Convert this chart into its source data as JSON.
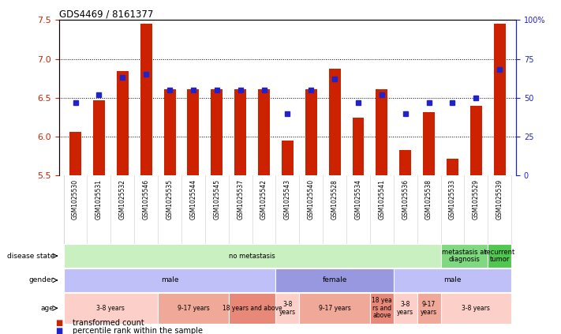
{
  "title": "GDS4469 / 8161377",
  "samples": [
    "GSM1025530",
    "GSM1025531",
    "GSM1025532",
    "GSM1025546",
    "GSM1025535",
    "GSM1025544",
    "GSM1025545",
    "GSM1025537",
    "GSM1025542",
    "GSM1025543",
    "GSM1025540",
    "GSM1025528",
    "GSM1025534",
    "GSM1025541",
    "GSM1025536",
    "GSM1025538",
    "GSM1025533",
    "GSM1025529",
    "GSM1025539"
  ],
  "red_values": [
    6.06,
    6.47,
    6.84,
    7.45,
    6.61,
    6.61,
    6.61,
    6.61,
    6.61,
    5.95,
    6.61,
    6.87,
    6.25,
    6.61,
    5.83,
    6.32,
    5.72,
    6.4,
    7.45
  ],
  "blue_values": [
    47,
    52,
    63,
    65,
    55,
    55,
    55,
    55,
    55,
    40,
    55,
    62,
    47,
    52,
    40,
    47,
    47,
    50,
    68
  ],
  "ylim_red": [
    5.5,
    7.5
  ],
  "ylim_blue": [
    0,
    100
  ],
  "yticks_red": [
    5.5,
    6.0,
    6.5,
    7.0,
    7.5
  ],
  "yticks_blue": [
    0,
    25,
    50,
    75,
    100
  ],
  "ytick_labels_blue": [
    "0",
    "25",
    "50",
    "75",
    "100%"
  ],
  "red_color": "#cc2200",
  "blue_color": "#2222cc",
  "bar_bottom": 5.5,
  "dotted_lines": [
    6.0,
    6.5,
    7.0
  ],
  "disease_state_groups": [
    {
      "label": "no metastasis",
      "start": 0,
      "end": 16,
      "color": "#c8f0c0"
    },
    {
      "label": "metastasis at\ndiagnosis",
      "start": 16,
      "end": 18,
      "color": "#80d880"
    },
    {
      "label": "recurrent\ntumor",
      "start": 18,
      "end": 19,
      "color": "#50c850"
    }
  ],
  "gender_groups": [
    {
      "label": "male",
      "start": 0,
      "end": 9,
      "color": "#c0c0f8"
    },
    {
      "label": "female",
      "start": 9,
      "end": 14,
      "color": "#9898e0"
    },
    {
      "label": "male",
      "start": 14,
      "end": 19,
      "color": "#c0c0f8"
    }
  ],
  "age_groups": [
    {
      "label": "3-8 years",
      "start": 0,
      "end": 4,
      "color": "#fcd0c8"
    },
    {
      "label": "9-17 years",
      "start": 4,
      "end": 7,
      "color": "#f0a898"
    },
    {
      "label": "18 years and above",
      "start": 7,
      "end": 9,
      "color": "#e88878"
    },
    {
      "label": "3-8\nyears",
      "start": 9,
      "end": 10,
      "color": "#fcd0c8"
    },
    {
      "label": "9-17 years",
      "start": 10,
      "end": 13,
      "color": "#f0a898"
    },
    {
      "label": "18 yea\nrs and\nabove",
      "start": 13,
      "end": 14,
      "color": "#e88878"
    },
    {
      "label": "3-8\nyears",
      "start": 14,
      "end": 15,
      "color": "#fcd0c8"
    },
    {
      "label": "9-17\nyears",
      "start": 15,
      "end": 16,
      "color": "#f0a898"
    },
    {
      "label": "3-8 years",
      "start": 16,
      "end": 19,
      "color": "#fcd0c8"
    }
  ],
  "legend_items": [
    {
      "color": "#cc2200",
      "label": "transformed count"
    },
    {
      "color": "#2222cc",
      "label": "percentile rank within the sample"
    }
  ],
  "row_labels": [
    "disease state",
    "gender",
    "age"
  ],
  "row_label_color": "#555555",
  "bar_width": 0.5
}
